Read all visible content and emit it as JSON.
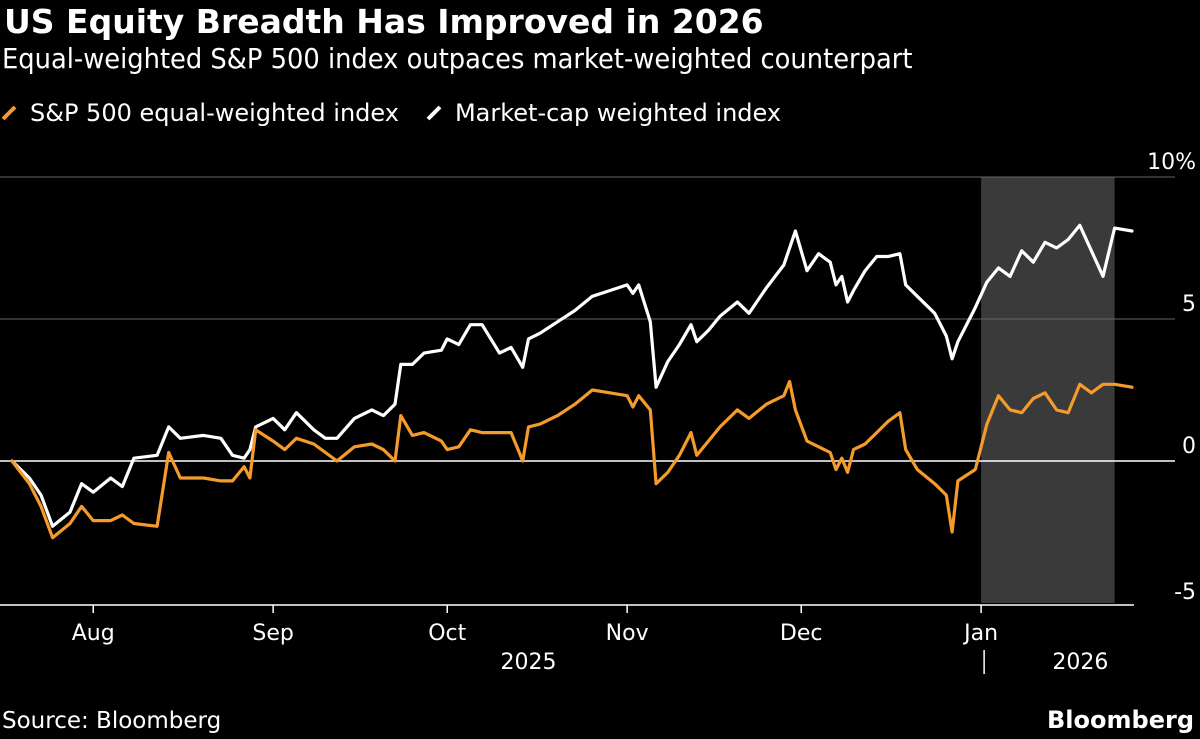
{
  "title": "US Equity Breadth Has Improved in 2026",
  "subtitle": "Equal-weighted S&P 500 index outpaces market-weighted counterpart",
  "source": "Source: Bloomberg",
  "brand": "Bloomberg",
  "colors": {
    "background": "#000000",
    "equal": "#f59b2b",
    "market": "#ffffff",
    "highlight": "#3a3a3a",
    "gridline": "#666666"
  },
  "chart_data": {
    "type": "line",
    "y_unit": "%",
    "ylim": [
      -5,
      10
    ],
    "yticks": [
      {
        "value": 10,
        "label": "10%"
      },
      {
        "value": 5,
        "label": "5"
      },
      {
        "value": 0,
        "label": "0"
      },
      {
        "value": -5,
        "label": "-5"
      }
    ],
    "xlim": [
      "2025-07-18",
      "2026-01-27"
    ],
    "xticks": [
      {
        "date": "2025-08-01",
        "label": "Aug"
      },
      {
        "date": "2025-09-01",
        "label": "Sep"
      },
      {
        "date": "2025-10-01",
        "label": "Oct"
      },
      {
        "date": "2025-11-01",
        "label": "Nov"
      },
      {
        "date": "2025-12-01",
        "label": "Dec"
      },
      {
        "date": "2026-01-01",
        "label": "Jan"
      }
    ],
    "year_labels": [
      {
        "date": "2025-10-15",
        "label": "2025"
      },
      {
        "date": "2026-01-15",
        "label": "2026"
      }
    ],
    "year_divider": "2026-01-01",
    "highlight_range": [
      "2026-01-01",
      "2026-01-24"
    ],
    "series": [
      {
        "name": "S&P 500 equal-weighted index",
        "color": "#f59b2b",
        "points": [
          [
            "2025-07-18",
            0.0
          ],
          [
            "2025-07-21",
            -0.8
          ],
          [
            "2025-07-23",
            -1.6
          ],
          [
            "2025-07-25",
            -2.7
          ],
          [
            "2025-07-28",
            -2.2
          ],
          [
            "2025-07-30",
            -1.6
          ],
          [
            "2025-08-01",
            -2.1
          ],
          [
            "2025-08-04",
            -2.1
          ],
          [
            "2025-08-06",
            -1.9
          ],
          [
            "2025-08-08",
            -2.2
          ],
          [
            "2025-08-12",
            -2.3
          ],
          [
            "2025-08-14",
            0.3
          ],
          [
            "2025-08-16",
            -0.6
          ],
          [
            "2025-08-20",
            -0.6
          ],
          [
            "2025-08-23",
            -0.7
          ],
          [
            "2025-08-25",
            -0.7
          ],
          [
            "2025-08-27",
            -0.2
          ],
          [
            "2025-08-28",
            -0.6
          ],
          [
            "2025-08-29",
            1.1
          ],
          [
            "2025-09-01",
            0.7
          ],
          [
            "2025-09-03",
            0.4
          ],
          [
            "2025-09-05",
            0.8
          ],
          [
            "2025-09-08",
            0.6
          ],
          [
            "2025-09-10",
            0.3
          ],
          [
            "2025-09-12",
            0.0
          ],
          [
            "2025-09-15",
            0.5
          ],
          [
            "2025-09-18",
            0.6
          ],
          [
            "2025-09-20",
            0.4
          ],
          [
            "2025-09-22",
            0.0
          ],
          [
            "2025-09-23",
            1.6
          ],
          [
            "2025-09-25",
            0.9
          ],
          [
            "2025-09-27",
            1.0
          ],
          [
            "2025-09-30",
            0.7
          ],
          [
            "2025-10-01",
            0.4
          ],
          [
            "2025-10-03",
            0.5
          ],
          [
            "2025-10-05",
            1.1
          ],
          [
            "2025-10-07",
            1.0
          ],
          [
            "2025-10-10",
            1.0
          ],
          [
            "2025-10-12",
            1.0
          ],
          [
            "2025-10-14",
            0.0
          ],
          [
            "2025-10-15",
            1.2
          ],
          [
            "2025-10-17",
            1.3
          ],
          [
            "2025-10-20",
            1.6
          ],
          [
            "2025-10-23",
            2.0
          ],
          [
            "2025-10-26",
            2.5
          ],
          [
            "2025-10-29",
            2.4
          ],
          [
            "2025-11-01",
            2.3
          ],
          [
            "2025-11-02",
            1.9
          ],
          [
            "2025-11-03",
            2.3
          ],
          [
            "2025-11-05",
            1.8
          ],
          [
            "2025-11-06",
            -0.8
          ],
          [
            "2025-11-08",
            -0.4
          ],
          [
            "2025-11-10",
            0.2
          ],
          [
            "2025-11-12",
            1.0
          ],
          [
            "2025-11-13",
            0.2
          ],
          [
            "2025-11-15",
            0.7
          ],
          [
            "2025-11-17",
            1.2
          ],
          [
            "2025-11-20",
            1.8
          ],
          [
            "2025-11-22",
            1.5
          ],
          [
            "2025-11-25",
            2.0
          ],
          [
            "2025-11-28",
            2.3
          ],
          [
            "2025-11-29",
            2.8
          ],
          [
            "2025-11-30",
            1.8
          ],
          [
            "2025-12-02",
            0.7
          ],
          [
            "2025-12-04",
            0.5
          ],
          [
            "2025-12-06",
            0.3
          ],
          [
            "2025-12-07",
            -0.3
          ],
          [
            "2025-12-08",
            0.1
          ],
          [
            "2025-12-09",
            -0.4
          ],
          [
            "2025-12-10",
            0.4
          ],
          [
            "2025-12-12",
            0.6
          ],
          [
            "2025-12-14",
            1.0
          ],
          [
            "2025-12-16",
            1.4
          ],
          [
            "2025-12-18",
            1.7
          ],
          [
            "2025-12-19",
            0.4
          ],
          [
            "2025-12-21",
            -0.3
          ],
          [
            "2025-12-24",
            -0.8
          ],
          [
            "2025-12-26",
            -1.2
          ],
          [
            "2025-12-27",
            -2.5
          ],
          [
            "2025-12-28",
            -0.7
          ],
          [
            "2025-12-31",
            -0.3
          ],
          [
            "2026-01-02",
            1.3
          ],
          [
            "2026-01-04",
            2.3
          ],
          [
            "2026-01-06",
            1.8
          ],
          [
            "2026-01-08",
            1.7
          ],
          [
            "2026-01-10",
            2.2
          ],
          [
            "2026-01-12",
            2.4
          ],
          [
            "2026-01-14",
            1.8
          ],
          [
            "2026-01-16",
            1.7
          ],
          [
            "2026-01-18",
            2.7
          ],
          [
            "2026-01-20",
            2.4
          ],
          [
            "2026-01-22",
            2.7
          ],
          [
            "2026-01-24",
            2.7
          ],
          [
            "2026-01-27",
            2.6
          ]
        ]
      },
      {
        "name": "Market-cap weighted index",
        "color": "#ffffff",
        "points": [
          [
            "2025-07-18",
            0.0
          ],
          [
            "2025-07-21",
            -0.6
          ],
          [
            "2025-07-23",
            -1.2
          ],
          [
            "2025-07-25",
            -2.3
          ],
          [
            "2025-07-28",
            -1.8
          ],
          [
            "2025-07-30",
            -0.8
          ],
          [
            "2025-08-01",
            -1.1
          ],
          [
            "2025-08-04",
            -0.6
          ],
          [
            "2025-08-06",
            -0.9
          ],
          [
            "2025-08-08",
            0.1
          ],
          [
            "2025-08-12",
            0.2
          ],
          [
            "2025-08-14",
            1.2
          ],
          [
            "2025-08-16",
            0.8
          ],
          [
            "2025-08-20",
            0.9
          ],
          [
            "2025-08-23",
            0.8
          ],
          [
            "2025-08-25",
            0.2
          ],
          [
            "2025-08-27",
            0.1
          ],
          [
            "2025-08-28",
            0.4
          ],
          [
            "2025-08-29",
            1.2
          ],
          [
            "2025-09-01",
            1.5
          ],
          [
            "2025-09-03",
            1.1
          ],
          [
            "2025-09-05",
            1.7
          ],
          [
            "2025-09-08",
            1.1
          ],
          [
            "2025-09-10",
            0.8
          ],
          [
            "2025-09-12",
            0.8
          ],
          [
            "2025-09-15",
            1.5
          ],
          [
            "2025-09-18",
            1.8
          ],
          [
            "2025-09-20",
            1.6
          ],
          [
            "2025-09-22",
            2.0
          ],
          [
            "2025-09-23",
            3.4
          ],
          [
            "2025-09-25",
            3.4
          ],
          [
            "2025-09-27",
            3.8
          ],
          [
            "2025-09-30",
            3.9
          ],
          [
            "2025-10-01",
            4.3
          ],
          [
            "2025-10-03",
            4.1
          ],
          [
            "2025-10-05",
            4.8
          ],
          [
            "2025-10-07",
            4.8
          ],
          [
            "2025-10-10",
            3.8
          ],
          [
            "2025-10-12",
            4.0
          ],
          [
            "2025-10-14",
            3.3
          ],
          [
            "2025-10-15",
            4.3
          ],
          [
            "2025-10-17",
            4.5
          ],
          [
            "2025-10-20",
            4.9
          ],
          [
            "2025-10-23",
            5.3
          ],
          [
            "2025-10-26",
            5.8
          ],
          [
            "2025-10-29",
            6.0
          ],
          [
            "2025-11-01",
            6.2
          ],
          [
            "2025-11-02",
            5.9
          ],
          [
            "2025-11-03",
            6.2
          ],
          [
            "2025-11-05",
            4.9
          ],
          [
            "2025-11-06",
            2.6
          ],
          [
            "2025-11-08",
            3.5
          ],
          [
            "2025-11-10",
            4.1
          ],
          [
            "2025-11-12",
            4.8
          ],
          [
            "2025-11-13",
            4.2
          ],
          [
            "2025-11-15",
            4.6
          ],
          [
            "2025-11-17",
            5.1
          ],
          [
            "2025-11-20",
            5.6
          ],
          [
            "2025-11-22",
            5.2
          ],
          [
            "2025-11-25",
            6.1
          ],
          [
            "2025-11-28",
            6.9
          ],
          [
            "2025-11-29",
            7.5
          ],
          [
            "2025-11-30",
            8.1
          ],
          [
            "2025-12-02",
            6.7
          ],
          [
            "2025-12-04",
            7.3
          ],
          [
            "2025-12-06",
            7.0
          ],
          [
            "2025-12-07",
            6.2
          ],
          [
            "2025-12-08",
            6.5
          ],
          [
            "2025-12-09",
            5.6
          ],
          [
            "2025-12-10",
            6.0
          ],
          [
            "2025-12-12",
            6.7
          ],
          [
            "2025-12-14",
            7.2
          ],
          [
            "2025-12-16",
            7.2
          ],
          [
            "2025-12-18",
            7.3
          ],
          [
            "2025-12-19",
            6.2
          ],
          [
            "2025-12-21",
            5.8
          ],
          [
            "2025-12-24",
            5.2
          ],
          [
            "2025-12-26",
            4.4
          ],
          [
            "2025-12-27",
            3.6
          ],
          [
            "2025-12-28",
            4.2
          ],
          [
            "2025-12-31",
            5.4
          ],
          [
            "2026-01-02",
            6.3
          ],
          [
            "2026-01-04",
            6.8
          ],
          [
            "2026-01-06",
            6.5
          ],
          [
            "2026-01-08",
            7.4
          ],
          [
            "2026-01-10",
            7.0
          ],
          [
            "2026-01-12",
            7.7
          ],
          [
            "2026-01-14",
            7.5
          ],
          [
            "2026-01-16",
            7.8
          ],
          [
            "2026-01-18",
            8.3
          ],
          [
            "2026-01-20",
            7.4
          ],
          [
            "2026-01-22",
            6.5
          ],
          [
            "2026-01-24",
            8.2
          ],
          [
            "2026-01-27",
            8.1
          ]
        ]
      }
    ]
  }
}
